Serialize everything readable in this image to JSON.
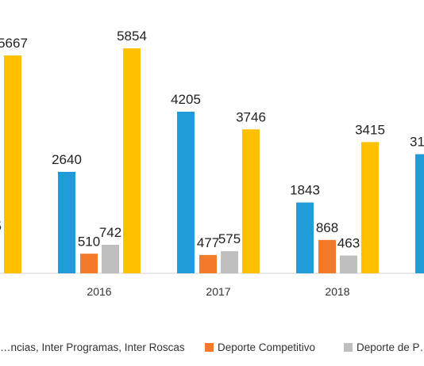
{
  "chart_data": {
    "type": "bar",
    "categories": [
      "",
      "2016",
      "2017",
      "2018",
      ""
    ],
    "series": [
      {
        "name": "…ncias, Inter Programas, Inter Roscas",
        "color": "#1f9bd7",
        "values": [
          null,
          2640,
          4205,
          1843,
          3100
        ],
        "labels": [
          "",
          "2640",
          "4205",
          "1843",
          "31…"
        ]
      },
      {
        "name": "Deporte Competitivo",
        "color": "#f47a2b",
        "values": [
          null,
          510,
          477,
          868,
          null
        ],
        "labels": [
          "",
          "510",
          "477",
          "868",
          ""
        ]
      },
      {
        "name": "Deporte de P…",
        "color": "#bfbfbf",
        "values": [
          null,
          742,
          575,
          463,
          null
        ],
        "labels": [
          "",
          "742",
          "575",
          "463",
          ""
        ]
      },
      {
        "name": "",
        "color": "#ffc000",
        "values": [
          5667,
          5854,
          3746,
          3415,
          null
        ],
        "labels": [
          "5667",
          "5854",
          "3746",
          "3415",
          ""
        ]
      }
    ],
    "partial_labels": {
      "left_edge": "…5"
    },
    "ylim": [
      0,
      7000
    ],
    "grid": false,
    "legend": "bottom"
  }
}
